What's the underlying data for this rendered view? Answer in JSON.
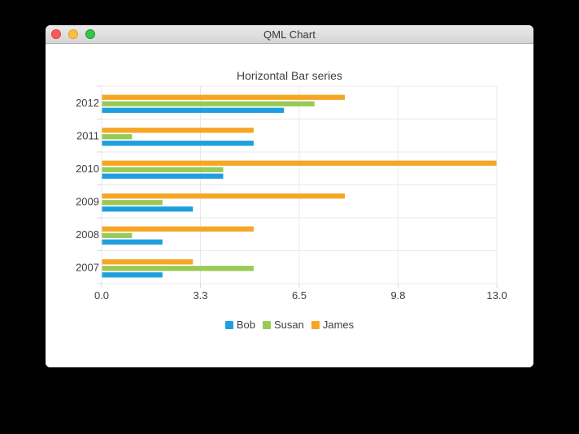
{
  "window": {
    "title": "QML Chart",
    "buttons": [
      {
        "name": "close",
        "color": "#fc5b57"
      },
      {
        "name": "minimize",
        "color": "#fdbe41"
      },
      {
        "name": "zoom",
        "color": "#33c748"
      }
    ]
  },
  "chart_data": {
    "type": "bar",
    "orientation": "horizontal",
    "title": "Horizontal Bar series",
    "categories": [
      "2012",
      "2011",
      "2010",
      "2009",
      "2008",
      "2007"
    ],
    "series": [
      {
        "name": "Bob",
        "color": "#209fdf",
        "values": [
          6,
          5,
          4,
          3,
          2,
          2
        ]
      },
      {
        "name": "Susan",
        "color": "#99ca53",
        "values": [
          7,
          1,
          4,
          2,
          1,
          5
        ]
      },
      {
        "name": "James",
        "color": "#f6a625",
        "values": [
          8,
          5,
          13,
          8,
          5,
          3
        ]
      }
    ],
    "xlim": [
      0,
      13
    ],
    "x_tick_labels": [
      "0.0",
      "3.3",
      "6.5",
      "9.8",
      "13.0"
    ],
    "grid": true,
    "legend_position": "bottom",
    "label_color": "#404044",
    "grid_color": "#e8e8e8",
    "tick_color": "#d9d9d9"
  }
}
